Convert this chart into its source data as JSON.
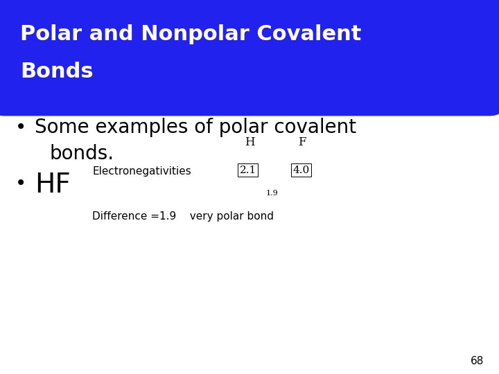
{
  "title_line1": "Polar and Nonpolar Covalent",
  "title_line2": "Bonds",
  "title_bg_color": "#2222EE",
  "title_text_color": "#FFFFFF",
  "body_bg_color": "#FFFFFF",
  "bullet_color": "#000000",
  "bullet_fontsize": 20,
  "title_fontsize": 22,
  "hf_label_H": "H",
  "hf_label_F": "F",
  "hf_eneg_label": "Electronegativities",
  "hf_eneg_H": "2.1",
  "hf_eneg_F": "4.0",
  "hf_diff_label": "Difference =1.9",
  "hf_diff_desc": "very polar bond",
  "hf_diff_small": "1.9",
  "page_number": "68"
}
